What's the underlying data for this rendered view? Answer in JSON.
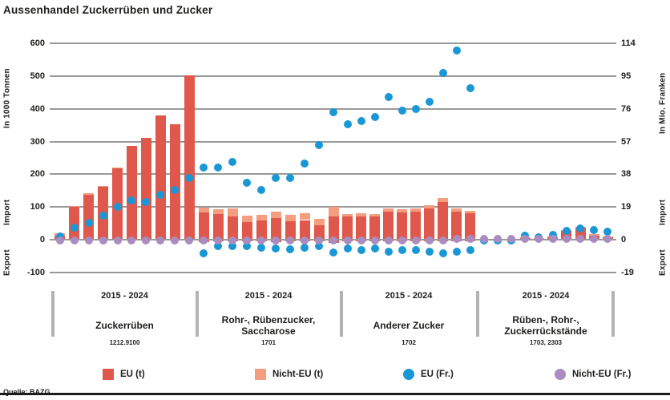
{
  "title": "Aussenhandel Zuckerrüben und Zucker",
  "source": "Quelle: BAZG",
  "colors": {
    "eu_bar": "#e0584c",
    "nicht_eu_bar": "#f59e7f",
    "eu_dot": "#1a97d5",
    "nicht_eu_dot": "#aa8cc1",
    "grid": "#999999",
    "separator": "#b3b3b3",
    "text": "#1d1d1b"
  },
  "left_axis": {
    "title": "In 1000 Tonnen",
    "import_label": "Import",
    "export_label": "Export",
    "ticks": [
      600,
      500,
      400,
      300,
      200,
      100,
      0,
      -100
    ]
  },
  "right_axis": {
    "title": "In Mio. Franken",
    "import_label": "Import",
    "export_label": "Export",
    "ticks": [
      114,
      95,
      76,
      57,
      38,
      19,
      0,
      -19
    ]
  },
  "legend": [
    {
      "label": "EU (t)",
      "marker": "square",
      "color": "#e0584c"
    },
    {
      "label": "Nicht-EU (t)",
      "marker": "square",
      "color": "#f59e7f"
    },
    {
      "label": "EU (Fr.)",
      "marker": "circle",
      "color": "#1a97d5"
    },
    {
      "label": "Nicht-EU (Fr.)",
      "marker": "circle",
      "color": "#aa8cc1"
    }
  ],
  "chart_data": {
    "type": "bar+scatter",
    "title": "Aussenhandel Zuckerrüben und Zucker",
    "left_unit": "1000 Tonnen",
    "right_unit": "Mio. Franken",
    "left_ticks": [
      600,
      500,
      400,
      300,
      200,
      100,
      0,
      -100
    ],
    "right_ticks": [
      114,
      95,
      76,
      57,
      38,
      19,
      0,
      -19
    ],
    "fr_axis_per_100_tonnes": 19,
    "years_per_group": 10,
    "grid": true,
    "groups": [
      {
        "period": "2015 - 2024",
        "name": "Zuckerrüben",
        "tariff": "1212.9100",
        "eu_t": [
          12,
          100,
          138,
          161,
          219,
          286,
          311,
          380,
          352,
          502
        ],
        "nicht_eu_t": [
          8,
          3,
          4,
          2,
          2,
          0,
          0,
          0,
          0,
          0
        ],
        "eu_t_export": [
          0,
          0,
          0,
          0,
          0,
          0,
          0,
          0,
          0,
          0
        ],
        "eu_fr": [
          2,
          7,
          10,
          14,
          19,
          23,
          22,
          26,
          29,
          36
        ],
        "nicht_eu_fr": [
          -0.5,
          -0.5,
          -0.5,
          -0.5,
          -0.5,
          -0.5,
          -0.5,
          -0.5,
          -0.5,
          -0.5
        ],
        "eu_fr_export": [
          0,
          0,
          0,
          0,
          0,
          0,
          0,
          0,
          0,
          0
        ]
      },
      {
        "period": "2015 - 2024",
        "name": "Rohr-, Rübenzucker,\nSaccharose",
        "tariff": "1701",
        "eu_t": [
          83,
          78,
          70,
          55,
          58,
          65,
          57,
          60,
          45,
          72
        ],
        "nicht_eu_t": [
          15,
          16,
          26,
          18,
          19,
          20,
          18,
          20,
          19,
          28
        ],
        "eu_t_export": [
          -8,
          -6,
          -6,
          -5,
          -6,
          -7,
          -6,
          -6,
          -5,
          -9
        ],
        "eu_fr": [
          42,
          42,
          45,
          33,
          29,
          36,
          36,
          44,
          55,
          74
        ],
        "nicht_eu_fr": [
          -0.5,
          -0.5,
          -0.5,
          -0.5,
          -0.5,
          -0.5,
          -0.5,
          -0.5,
          -0.5,
          -0.5
        ],
        "eu_fr_export": [
          -8,
          -3.5,
          -3.5,
          -3.5,
          -4.5,
          -5,
          -5.5,
          -4.5,
          -3.5,
          -7.5
        ]
      },
      {
        "period": "2015 - 2024",
        "name": "Anderer Zucker",
        "tariff": "1702",
        "eu_t": [
          70,
          72,
          70,
          85,
          83,
          85,
          95,
          115,
          85,
          80
        ],
        "nicht_eu_t": [
          8,
          8,
          8,
          10,
          10,
          10,
          10,
          12,
          10,
          8
        ],
        "eu_t_export": [
          -5,
          -5,
          -5,
          -5,
          -5,
          -5,
          -5,
          -5,
          -5,
          -5
        ],
        "eu_fr": [
          67,
          69,
          71,
          83,
          75,
          76,
          80,
          97,
          110,
          88
        ],
        "nicht_eu_fr": [
          -0.5,
          -0.5,
          -0.5,
          -0.5,
          -0.5,
          -0.5,
          -0.5,
          -0.5,
          0.5,
          0.5
        ],
        "eu_fr_export": [
          -5,
          -6,
          -5,
          -7,
          -6,
          -6,
          -7,
          -8,
          -7,
          -6
        ]
      },
      {
        "period": "2015 - 2024",
        "name": "Rüben-, Rohr-,\nZuckerrückstände",
        "tariff": "1703, 2303",
        "eu_t": [
          0,
          0,
          0,
          6,
          4,
          7,
          26,
          36,
          13,
          8
        ],
        "nicht_eu_t": [
          0,
          0,
          0,
          2,
          2,
          2,
          4,
          4,
          3,
          3
        ],
        "eu_t_export": [
          0,
          0,
          0,
          0,
          0,
          0,
          0,
          0,
          0,
          0
        ],
        "eu_fr": [
          -0.5,
          -0.5,
          -0.5,
          2.5,
          1.5,
          3,
          5,
          6.5,
          5.5,
          4.5
        ],
        "nicht_eu_fr": [
          0.3,
          0.3,
          0.3,
          0.3,
          0.3,
          0.3,
          0.3,
          0.3,
          0.3,
          0.3
        ],
        "eu_fr_export": [
          0,
          0,
          0,
          0,
          0,
          0,
          0,
          0,
          0,
          0
        ]
      }
    ]
  }
}
